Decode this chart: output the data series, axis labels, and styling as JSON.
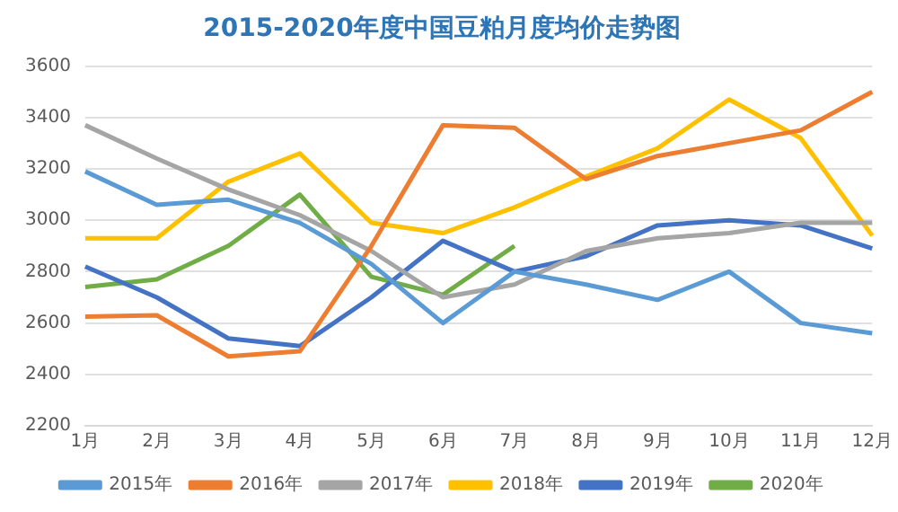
{
  "chart_data": {
    "type": "line",
    "title": "2015-2020年度中国豆粕月度均价走势图",
    "categories": [
      "1月",
      "2月",
      "3月",
      "4月",
      "5月",
      "6月",
      "7月",
      "8月",
      "9月",
      "10月",
      "11月",
      "12月"
    ],
    "series": [
      {
        "name": "2015年",
        "color": "#5b9bd5",
        "values": [
          3190,
          3060,
          3080,
          2990,
          2830,
          2600,
          2800,
          2750,
          2690,
          2800,
          2600,
          2560
        ]
      },
      {
        "name": "2016年",
        "color": "#ed7d31",
        "values": [
          2625,
          2630,
          2470,
          2490,
          2900,
          3370,
          3360,
          3160,
          3250,
          3300,
          3350,
          3500
        ]
      },
      {
        "name": "2017年",
        "color": "#a5a5a5",
        "values": [
          3370,
          3240,
          3120,
          3020,
          2880,
          2700,
          2750,
          2880,
          2930,
          2950,
          2990,
          2990
        ]
      },
      {
        "name": "2018年",
        "color": "#ffc000",
        "values": [
          2930,
          2930,
          3150,
          3260,
          2990,
          2950,
          3050,
          3170,
          3280,
          3470,
          3320,
          2940
        ]
      },
      {
        "name": "2019年",
        "color": "#4472c4",
        "values": [
          2820,
          2700,
          2540,
          2510,
          2700,
          2920,
          2800,
          2860,
          2980,
          3000,
          2980,
          2890
        ]
      },
      {
        "name": "2020年",
        "color": "#70ad47",
        "values": [
          2740,
          2770,
          2900,
          3100,
          2780,
          2710,
          2900,
          null,
          null,
          null,
          null,
          null
        ]
      }
    ],
    "ylim": [
      2200,
      3600
    ],
    "yticks": [
      2200,
      2400,
      2600,
      2800,
      3000,
      3200,
      3400,
      3600
    ],
    "grid": "y",
    "legend": "bottom",
    "marker": "none",
    "line_style": "solid"
  }
}
